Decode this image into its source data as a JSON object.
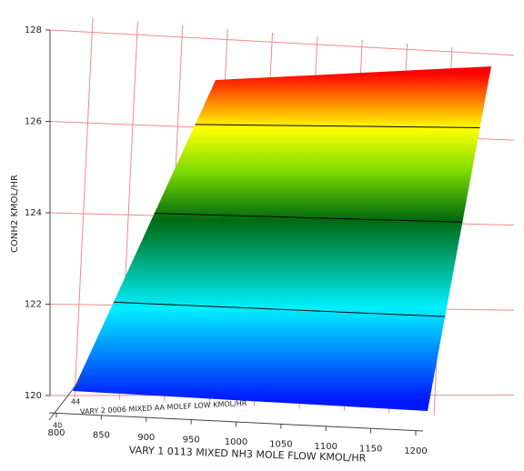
{
  "chart_data": {
    "type": "surface",
    "x_label": "VARY 1 0113 MIXED NH3 MOLE FLOW KMOL/HR",
    "y_label": "VARY 2 0006 MIXED AA MOLEF LOW KMOL/HR",
    "z_label": "CONH2 KMOL/HR",
    "x": [
      800,
      1200
    ],
    "y": [
      40,
      48
    ],
    "z": [
      [
        120,
        120
      ],
      [
        127,
        127.3
      ]
    ],
    "xlim": [
      800,
      1200
    ],
    "ylim": [
      40,
      48
    ],
    "zlim": [
      120,
      128
    ],
    "xticks": [
      800,
      850,
      900,
      950,
      1000,
      1050,
      1100,
      1150,
      1200
    ],
    "yticks": [
      40,
      44
    ],
    "zticks": [
      120,
      122,
      124,
      126,
      128
    ],
    "contour_levels": [
      122,
      124,
      126
    ],
    "grid": true
  }
}
